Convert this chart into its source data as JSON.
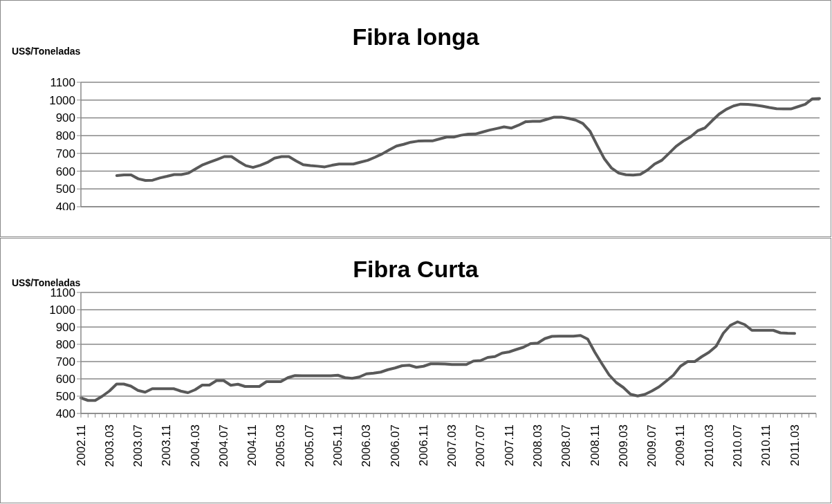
{
  "chart_data": [
    {
      "type": "line",
      "title": "Fibra longa",
      "ylabel": "US$/Toneladas",
      "tick_labels": "y",
      "grid": "y",
      "ylim": [
        400,
        1100
      ],
      "yticks": [
        400,
        500,
        600,
        700,
        800,
        900,
        1000,
        1100
      ],
      "categories": [
        "2002.11",
        null,
        null,
        null,
        "2003.03",
        null,
        null,
        null,
        "2003.07",
        null,
        null,
        null,
        "2003.11",
        null,
        null,
        null,
        "2004.03",
        null,
        null,
        null,
        "2004.07",
        null,
        null,
        null,
        "2004.11",
        null,
        null,
        null,
        "2005.03",
        null,
        null,
        null,
        "2005.07",
        null,
        null,
        null,
        "2005.11",
        null,
        null,
        null,
        "2006.03",
        null,
        null,
        null,
        "2006.07",
        null,
        null,
        null,
        "2006.11",
        null,
        null,
        null,
        "2007.03",
        null,
        null,
        null,
        "2007.07",
        null,
        null,
        null,
        "2007.11",
        null,
        null,
        null,
        "2008.03",
        null,
        null,
        null,
        "2008.07",
        null,
        null,
        null,
        "2008.11",
        null,
        null,
        null,
        "2009.03",
        null,
        null,
        null,
        "2009.07",
        null,
        null,
        null,
        "2009.11",
        null,
        null,
        null,
        "2010.03",
        null,
        null,
        null,
        "2010.07",
        null,
        null,
        null,
        "2010.11",
        null,
        null,
        null,
        "2011.03",
        null,
        null,
        null
      ],
      "series": [
        {
          "color": "#595959",
          "values": [
            null,
            null,
            null,
            null,
            null,
            575,
            579,
            579,
            557,
            548,
            549,
            562,
            571,
            581,
            581,
            589,
            613,
            636,
            651,
            666,
            682,
            682,
            655,
            631,
            621,
            633,
            649,
            673,
            682,
            682,
            658,
            636,
            631,
            628,
            624,
            633,
            640,
            640,
            640,
            651,
            661,
            678,
            697,
            720,
            741,
            751,
            763,
            769,
            770,
            770,
            781,
            792,
            792,
            802,
            808,
            809,
            820,
            831,
            840,
            849,
            842,
            858,
            878,
            880,
            880,
            892,
            904,
            904,
            897,
            887,
            868,
            824,
            745,
            669,
            617,
            589,
            580,
            578,
            582,
            606,
            640,
            661,
            700,
            740,
            769,
            793,
            827,
            843,
            883,
            921,
            948,
            967,
            977,
            976,
            972,
            966,
            958,
            951,
            950,
            950,
            963,
            976,
            1007,
            1009
          ]
        }
      ]
    },
    {
      "type": "line",
      "title": "Fibra Curta",
      "ylabel": "US$/Toneladas",
      "grid": "y",
      "ylim": [
        400,
        1100
      ],
      "yticks": [
        400,
        500,
        600,
        700,
        800,
        900,
        1000,
        1100
      ],
      "categories": [
        "2002.11",
        null,
        null,
        null,
        "2003.03",
        null,
        null,
        null,
        "2003.07",
        null,
        null,
        null,
        "2003.11",
        null,
        null,
        null,
        "2004.03",
        null,
        null,
        null,
        "2004.07",
        null,
        null,
        null,
        "2004.11",
        null,
        null,
        null,
        "2005.03",
        null,
        null,
        null,
        "2005.07",
        null,
        null,
        null,
        "2005.11",
        null,
        null,
        null,
        "2006.03",
        null,
        null,
        null,
        "2006.07",
        null,
        null,
        null,
        "2006.11",
        null,
        null,
        null,
        "2007.03",
        null,
        null,
        null,
        "2007.07",
        null,
        null,
        null,
        "2007.11",
        null,
        null,
        null,
        "2008.03",
        null,
        null,
        null,
        "2008.07",
        null,
        null,
        null,
        "2008.11",
        null,
        null,
        null,
        "2009.03",
        null,
        null,
        null,
        "2009.07",
        null,
        null,
        null,
        "2009.11",
        null,
        null,
        null,
        "2010.03",
        null,
        null,
        null,
        "2010.07",
        null,
        null,
        null,
        "2010.11",
        null,
        null,
        null,
        "2011.03",
        null,
        null,
        null
      ],
      "series": [
        {
          "color": "#595959",
          "values": [
            490,
            475,
            475,
            500,
            530,
            570,
            570,
            558,
            533,
            523,
            543,
            543,
            543,
            543,
            529,
            520,
            537,
            564,
            564,
            590,
            590,
            563,
            569,
            556,
            556,
            556,
            584,
            584,
            584,
            607,
            619,
            618,
            618,
            618,
            618,
            618,
            621,
            607,
            603,
            611,
            629,
            633,
            639,
            653,
            663,
            676,
            679,
            667,
            673,
            687,
            687,
            686,
            683,
            683,
            683,
            703,
            706,
            724,
            729,
            749,
            756,
            770,
            783,
            804,
            807,
            833,
            846,
            847,
            847,
            847,
            851,
            830,
            754,
            687,
            623,
            579,
            550,
            511,
            501,
            510,
            530,
            554,
            587,
            621,
            673,
            700,
            700,
            729,
            754,
            789,
            864,
            910,
            930,
            914,
            881,
            881,
            881,
            881,
            866,
            864,
            863,
            null,
            null,
            null
          ]
        }
      ]
    }
  ]
}
